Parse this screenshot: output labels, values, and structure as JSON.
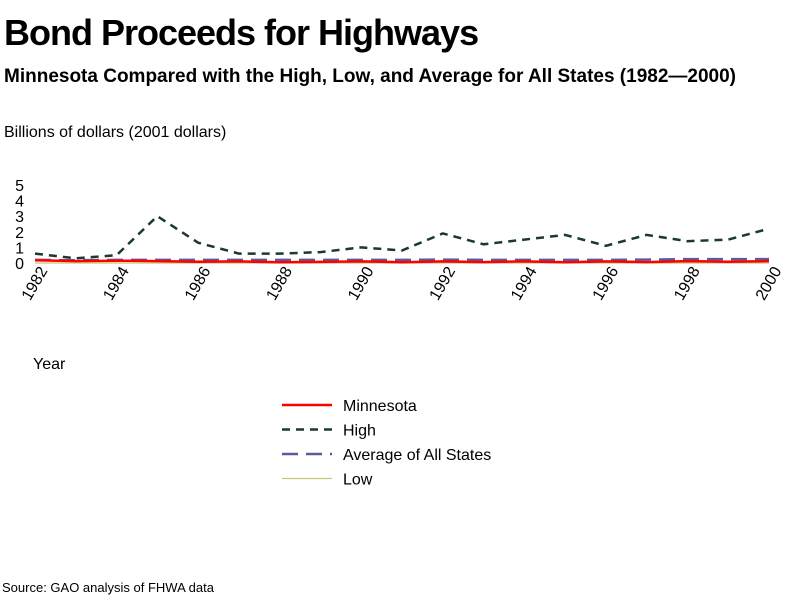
{
  "title": "Bond Proceeds for Highways",
  "subtitle": "Minnesota Compared with the High, Low, and Average for All States (1982—2000)",
  "source": "Source: GAO analysis of FHWA data",
  "chart_data": {
    "type": "line",
    "ylabel": "Billions of dollars (2001 dollars)",
    "xlabel": "Year",
    "x": [
      1982,
      1983,
      1984,
      1985,
      1986,
      1987,
      1988,
      1989,
      1990,
      1991,
      1992,
      1993,
      1994,
      1995,
      1996,
      1997,
      1998,
      1999,
      2000
    ],
    "xticks": [
      "1982",
      "1984",
      "1986",
      "1988",
      "1990",
      "1992",
      "1994",
      "1996",
      "1998",
      "2000"
    ],
    "yticks": [
      "0",
      "1",
      "2",
      "3",
      "4",
      "5"
    ],
    "ylim": [
      0,
      5
    ],
    "grid": false,
    "legend_position": "bottom-center",
    "series": [
      {
        "name": "Minnesota",
        "color": "#ff0000",
        "dash": "solid",
        "values": [
          0.18,
          0.12,
          0.15,
          0.12,
          0.08,
          0.1,
          0.05,
          0.07,
          0.1,
          0.05,
          0.1,
          0.06,
          0.1,
          0.05,
          0.1,
          0.06,
          0.12,
          0.08,
          0.12
        ]
      },
      {
        "name": "High",
        "color": "#1a3a2a",
        "dash": "dashed",
        "values": [
          0.6,
          0.3,
          0.5,
          3.0,
          1.3,
          0.6,
          0.6,
          0.7,
          1.0,
          0.8,
          1.9,
          1.2,
          1.5,
          1.8,
          1.1,
          1.8,
          1.4,
          1.5,
          2.2
        ]
      },
      {
        "name": "Average of All States",
        "color": "#5a5aa0",
        "dash": "longdash",
        "values": [
          0.2,
          0.18,
          0.2,
          0.2,
          0.2,
          0.2,
          0.2,
          0.2,
          0.2,
          0.2,
          0.22,
          0.2,
          0.2,
          0.2,
          0.2,
          0.22,
          0.25,
          0.25,
          0.25
        ]
      },
      {
        "name": "Low",
        "color": "#c8c878",
        "dash": "solid",
        "values": [
          0,
          0,
          0,
          0,
          0,
          0,
          0,
          0,
          0,
          0,
          0,
          0,
          0,
          0,
          0,
          0,
          0,
          0,
          0
        ]
      }
    ]
  }
}
